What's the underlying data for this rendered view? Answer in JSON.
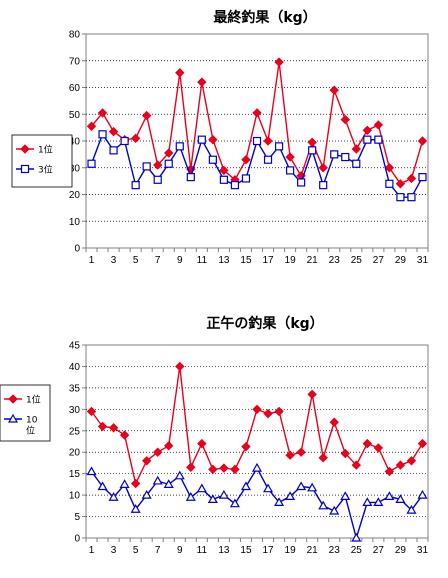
{
  "chart_data": [
    {
      "type": "line",
      "title": "最終釣果（kg）",
      "xlabel": "",
      "ylabel": "",
      "ylim": [
        0,
        80
      ],
      "yticks": [
        "0",
        "10",
        "20",
        "30",
        "40",
        "50",
        "60",
        "70",
        "80"
      ],
      "x": [
        1,
        2,
        3,
        4,
        5,
        6,
        7,
        8,
        9,
        10,
        11,
        12,
        13,
        14,
        15,
        16,
        17,
        18,
        19,
        20,
        21,
        22,
        23,
        24,
        25,
        26,
        27,
        28,
        29,
        30,
        31
      ],
      "xticks": [
        "1",
        "3",
        "5",
        "7",
        "9",
        "11",
        "13",
        "15",
        "17",
        "19",
        "21",
        "23",
        "25",
        "27",
        "29",
        "31"
      ],
      "grid": "horizontal dotted",
      "legend": "left",
      "series": [
        {
          "name": "1位",
          "color": "#e8001c",
          "marker": "diamond",
          "values": [
            45.5,
            50.5,
            43.5,
            40.5,
            41,
            49.5,
            31,
            35.5,
            65.5,
            29.5,
            62,
            40.5,
            29,
            25.5,
            33,
            50.5,
            40,
            69.5,
            34,
            27,
            39.5,
            30,
            59,
            48,
            37,
            44,
            46,
            30,
            24,
            26,
            40
          ]
        },
        {
          "name": "3位",
          "color": "#0000cc",
          "marker": "square",
          "values": [
            31.5,
            42.5,
            36.5,
            40,
            23.5,
            30.5,
            25.5,
            31.5,
            38,
            26.5,
            40.5,
            33,
            25.5,
            23.5,
            26,
            40,
            33,
            38,
            29,
            24.5,
            36.5,
            23.5,
            35,
            34,
            31.5,
            40.5,
            40.5,
            24,
            19,
            19,
            26.5
          ]
        }
      ]
    },
    {
      "type": "line",
      "title": "正午の釣果（kg）",
      "xlabel": "",
      "ylabel": "",
      "ylim": [
        0,
        45
      ],
      "yticks": [
        "0",
        "5",
        "10",
        "15",
        "20",
        "25",
        "30",
        "35",
        "40",
        "45"
      ],
      "x": [
        1,
        2,
        3,
        4,
        5,
        6,
        7,
        8,
        9,
        10,
        11,
        12,
        13,
        14,
        15,
        16,
        17,
        18,
        19,
        20,
        21,
        22,
        23,
        24,
        25,
        26,
        27,
        28,
        29,
        30,
        31
      ],
      "xticks": [
        "1",
        "3",
        "5",
        "7",
        "9",
        "11",
        "13",
        "15",
        "17",
        "19",
        "21",
        "23",
        "25",
        "27",
        "29",
        "31"
      ],
      "grid": "horizontal dotted",
      "legend": "left",
      "series": [
        {
          "name": "1位",
          "color": "#e8001c",
          "marker": "diamond",
          "values": [
            29.5,
            26,
            25.7,
            24,
            12.7,
            18,
            20,
            21.5,
            40,
            16.5,
            22,
            16,
            16.3,
            16,
            21.3,
            30,
            29,
            29.5,
            19.3,
            20,
            33.5,
            18.7,
            27,
            19.7,
            17,
            22,
            21,
            15.5,
            17,
            18,
            22
          ]
        },
        {
          "name": "10\n位",
          "color": "#0000cc",
          "marker": "triangle",
          "values": [
            15.5,
            12,
            9.5,
            12.5,
            6.7,
            10,
            13.3,
            12.5,
            14.5,
            9.5,
            11.5,
            9,
            10,
            8,
            12,
            16.3,
            11.5,
            8.3,
            9.7,
            12,
            11.7,
            7.5,
            6.3,
            9.7,
            0,
            8.3,
            8.3,
            9.7,
            9,
            6.5,
            10
          ]
        }
      ]
    }
  ]
}
